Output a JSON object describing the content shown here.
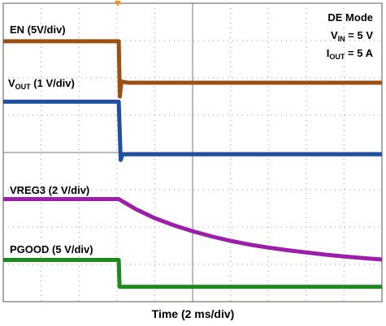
{
  "chart_data": {
    "type": "line",
    "xlabel": "Time (2 ms/div)",
    "ylabel": "",
    "x_units": "div",
    "x_range": [
      0,
      10
    ],
    "y_units": "div",
    "y_range": [
      -4,
      4
    ],
    "grid": true,
    "annotations": {
      "mode": "DE Mode",
      "vin_label": "V",
      "vin_sub": "IN",
      "vin_value": " = 5 V",
      "iout_label": "I",
      "iout_sub": "OUT",
      "iout_value": " = 5 A"
    },
    "series": [
      {
        "name": "EN (5V/div)",
        "name_main": "EN (5V/div)",
        "color": "#9B5012",
        "x": [
          0,
          3.05,
          3.08,
          3.12,
          3.3,
          10
        ],
        "y": [
          2.98,
          2.98,
          1.5,
          1.9,
          1.87,
          1.87
        ]
      },
      {
        "name": "VOUT (1 V/div)",
        "name_pre": "V",
        "name_sub": "OUT",
        "name_post": " (1 V/div)",
        "color": "#1F4FA0",
        "x": [
          0,
          3.05,
          3.1,
          3.15,
          10
        ],
        "y": [
          1.36,
          1.36,
          -0.2,
          -0.05,
          -0.05
        ]
      },
      {
        "name": "VREG3 (2 V/div)",
        "name_main": "VREG3 (2 V/div)",
        "color": "#9B1FA8",
        "x": [
          0,
          3.05,
          3.5,
          4.0,
          4.5,
          5.0,
          5.5,
          6.0,
          6.5,
          7.0,
          7.5,
          8.0,
          8.5,
          9.0,
          9.5,
          10
        ],
        "y": [
          -1.25,
          -1.25,
          -1.52,
          -1.76,
          -1.95,
          -2.11,
          -2.25,
          -2.37,
          -2.47,
          -2.55,
          -2.62,
          -2.68,
          -2.74,
          -2.79,
          -2.83,
          -2.87
        ]
      },
      {
        "name": "PGOOD (5 V/div)",
        "name_main": "PGOOD (5 V/div)",
        "color": "#1E8A1E",
        "x": [
          0,
          3.05,
          3.07,
          10
        ],
        "y": [
          -2.88,
          -2.88,
          -3.6,
          -3.6
        ]
      }
    ]
  }
}
